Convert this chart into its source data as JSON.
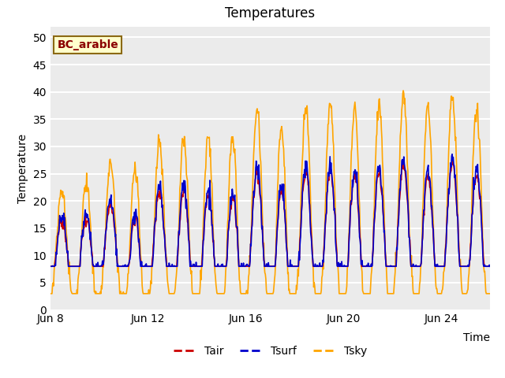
{
  "title": "Temperatures",
  "xlabel": "Time",
  "ylabel": "Temperature",
  "annotation": "BC_arable",
  "ylim": [
    0,
    52
  ],
  "yticks": [
    0,
    5,
    10,
    15,
    20,
    25,
    30,
    35,
    40,
    45,
    50
  ],
  "bg_color": "#ebebeb",
  "grid_color": "#ffffff",
  "line_color_tair": "#cc0000",
  "line_color_tsurf": "#0000cc",
  "line_color_tsky": "#ffa500",
  "line_width": 1.2,
  "xtick_labels": [
    "Jun 8",
    "Jun 12",
    "Jun 16",
    "Jun 20",
    "Jun 24"
  ],
  "xtick_positions": [
    0,
    4,
    8,
    12,
    16
  ],
  "n_days": 18,
  "pts_per_day": 48,
  "annotation_color": "#8b0000",
  "annotation_bg": "#ffffcc",
  "annotation_edge": "#8b6914"
}
